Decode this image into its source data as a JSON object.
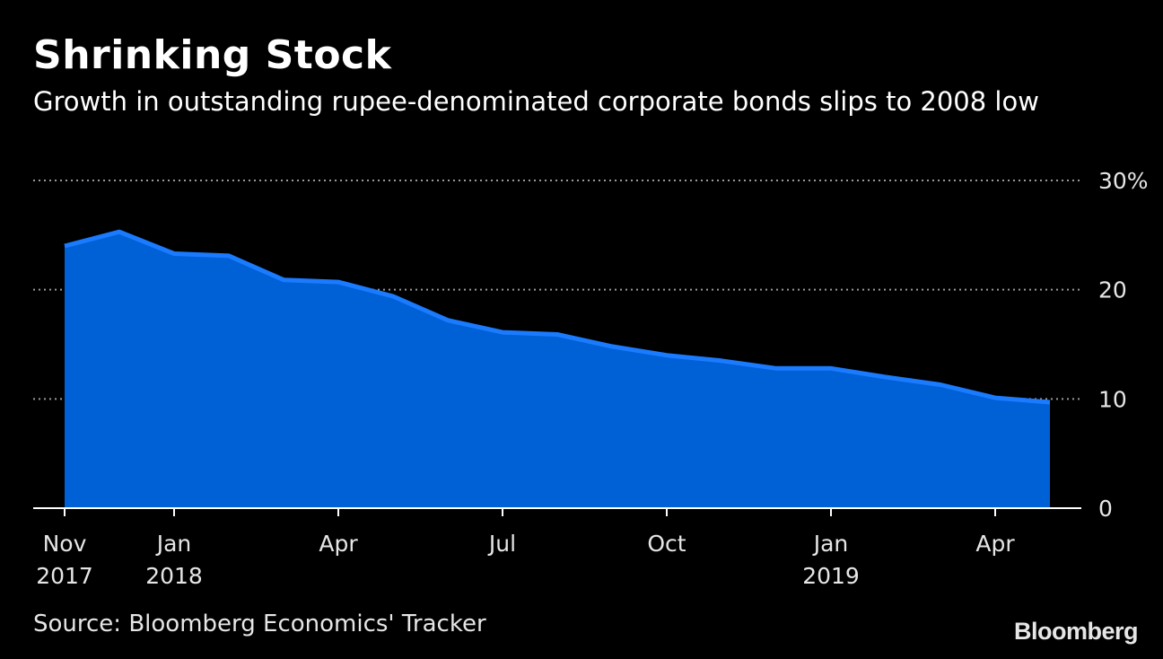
{
  "header": {
    "title": "Shrinking Stock",
    "subtitle": "Growth in outstanding rupee-denominated corporate bonds slips to 2008 low"
  },
  "footer": {
    "source": "Source: Bloomberg Economics' Tracker",
    "brand": "Bloomberg"
  },
  "colors": {
    "background": "#000000",
    "area_fill": "#0060d6",
    "line": "#1a7bff",
    "grid": "#9a9a9a",
    "text": "#e6e6e6"
  },
  "chart_data": {
    "type": "area",
    "title": "Shrinking Stock",
    "subtitle": "Growth in outstanding rupee-denominated corporate bonds slips to 2008 low",
    "xlabel": "",
    "ylabel": "",
    "y_unit": "%",
    "ylim": [
      0,
      30
    ],
    "y_ticks": [
      {
        "value": 0,
        "label": "0"
      },
      {
        "value": 10,
        "label": "10"
      },
      {
        "value": 20,
        "label": "20"
      },
      {
        "value": 30,
        "label": "30%"
      }
    ],
    "x_ticks": [
      {
        "date": "2017-11",
        "label": "Nov",
        "sublabel": "2017"
      },
      {
        "date": "2018-01",
        "label": "Jan",
        "sublabel": "2018"
      },
      {
        "date": "2018-04",
        "label": "Apr",
        "sublabel": ""
      },
      {
        "date": "2018-07",
        "label": "Jul",
        "sublabel": ""
      },
      {
        "date": "2018-10",
        "label": "Oct",
        "sublabel": ""
      },
      {
        "date": "2019-01",
        "label": "Jan",
        "sublabel": "2019"
      },
      {
        "date": "2019-04",
        "label": "Apr",
        "sublabel": ""
      }
    ],
    "grid": true,
    "legend": "none",
    "series": [
      {
        "x": [
          "2017-11",
          "2017-12",
          "2018-01",
          "2018-02",
          "2018-03",
          "2018-04",
          "2018-05",
          "2018-06",
          "2018-07",
          "2018-08",
          "2018-09",
          "2018-10",
          "2018-11",
          "2018-12",
          "2019-01",
          "2019-02",
          "2019-03",
          "2019-04",
          "2019-05"
        ],
        "values": [
          24.0,
          25.3,
          23.3,
          23.1,
          20.9,
          20.7,
          19.4,
          17.2,
          16.1,
          15.9,
          14.8,
          14.0,
          13.5,
          12.8,
          12.8,
          12.0,
          11.3,
          10.1,
          9.7
        ]
      }
    ]
  }
}
